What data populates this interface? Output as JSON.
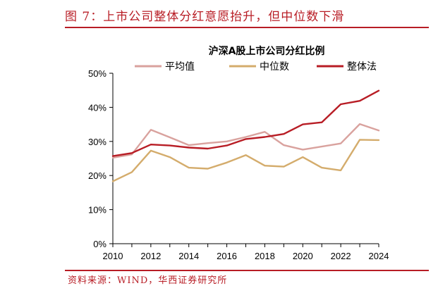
{
  "figure": {
    "title": "图 7：上市公司整体分红意愿抬升，但中位数下滑",
    "source": "资料来源：WIND，华西证券研究所"
  },
  "chart_data": {
    "type": "line",
    "title": "沪深A股上市公司分红比例",
    "xlabel": "",
    "ylabel": "",
    "x": [
      2010,
      2011,
      2012,
      2013,
      2014,
      2015,
      2016,
      2017,
      2018,
      2019,
      2020,
      2021,
      2022,
      2023,
      2024
    ],
    "xticks": [
      2010,
      2012,
      2014,
      2016,
      2018,
      2020,
      2022,
      2024
    ],
    "xlim": [
      2010,
      2024
    ],
    "ylim": [
      0,
      50
    ],
    "yticks": [
      "0%",
      "10%",
      "20%",
      "30%",
      "40%",
      "50%"
    ],
    "legend_position": "top",
    "grid": false,
    "series": [
      {
        "name": "平均值",
        "color": "#d9a29e",
        "values": [
          25.2,
          26.2,
          33.4,
          31.2,
          28.9,
          29.5,
          30.0,
          31.3,
          32.8,
          28.9,
          27.6,
          28.5,
          29.4,
          35.1,
          33.2
        ]
      },
      {
        "name": "中位数",
        "color": "#d4ac6c",
        "values": [
          18.3,
          21.0,
          27.3,
          25.4,
          22.3,
          22.0,
          23.8,
          26.0,
          22.9,
          22.6,
          25.4,
          22.3,
          21.5,
          30.5,
          30.4
        ]
      },
      {
        "name": "整体法",
        "color": "#b81d25",
        "values": [
          25.7,
          26.6,
          29.1,
          28.8,
          28.2,
          27.9,
          28.8,
          30.7,
          31.3,
          32.2,
          35.0,
          35.6,
          40.9,
          41.9,
          44.9
        ]
      }
    ]
  }
}
